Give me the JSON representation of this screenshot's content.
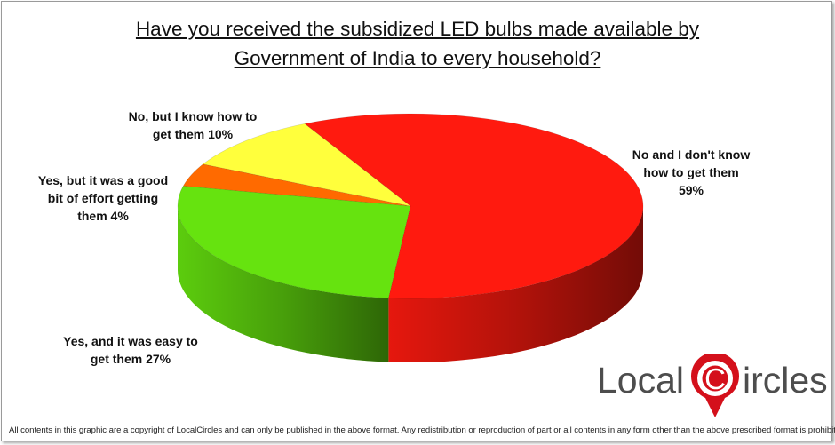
{
  "chart_data": {
    "type": "pie",
    "title_lines": [
      "Have you received the subsidized LED bulbs made available by",
      "Government of India to every household?"
    ],
    "slices": [
      {
        "key": "no-dont-know",
        "label_lines": [
          "No and I don't know",
          "how to get them",
          "59%"
        ],
        "value": 59,
        "color": "#ff1a0f"
      },
      {
        "key": "yes-easy",
        "label_lines": [
          "Yes, and it was easy to",
          "get them  27%"
        ],
        "value": 27,
        "color": "#66e30f"
      },
      {
        "key": "yes-effort",
        "label_lines": [
          "Yes, but it was a good",
          "bit of effort getting",
          "them  4%"
        ],
        "value": 4,
        "color": "#ff6a00"
      },
      {
        "key": "no-know",
        "label_lines": [
          "No, but I know how to",
          "get them 10%"
        ],
        "value": 10,
        "color": "#ffff3c"
      }
    ]
  },
  "logo": {
    "text_before": "Local",
    "initial": "C",
    "text_after": "ircles"
  },
  "footer": "All contents in this graphic are a copyright of LocalCircles and can only be published in the above format. Any redistribution or reproduction of part or all contents in any form other than the above prescribed format is prohibited."
}
